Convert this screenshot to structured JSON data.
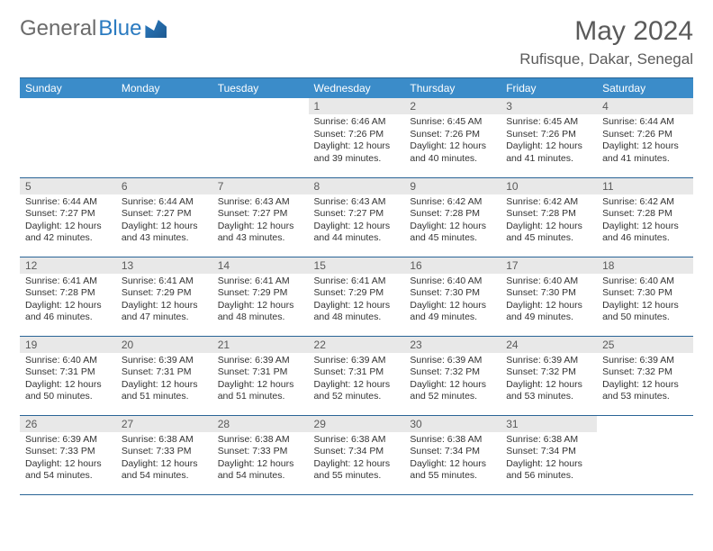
{
  "colors": {
    "header_bg": "#3b8cc9",
    "header_text": "#ffffff",
    "daynum_bg": "#e8e8e8",
    "border": "#2a6496",
    "logo_gray": "#6b6b6b",
    "logo_blue": "#2a7ac0",
    "title_color": "#5a5a5a",
    "body_text": "#333333",
    "background": "#ffffff"
  },
  "logo": {
    "part1": "General",
    "part2": "Blue"
  },
  "title": "May 2024",
  "location": "Rufisque, Dakar, Senegal",
  "weekdays": [
    "Sunday",
    "Monday",
    "Tuesday",
    "Wednesday",
    "Thursday",
    "Friday",
    "Saturday"
  ],
  "weeks": [
    [
      null,
      null,
      null,
      {
        "d": "1",
        "sr": "Sunrise: 6:46 AM",
        "ss": "Sunset: 7:26 PM",
        "dl1": "Daylight: 12 hours",
        "dl2": "and 39 minutes."
      },
      {
        "d": "2",
        "sr": "Sunrise: 6:45 AM",
        "ss": "Sunset: 7:26 PM",
        "dl1": "Daylight: 12 hours",
        "dl2": "and 40 minutes."
      },
      {
        "d": "3",
        "sr": "Sunrise: 6:45 AM",
        "ss": "Sunset: 7:26 PM",
        "dl1": "Daylight: 12 hours",
        "dl2": "and 41 minutes."
      },
      {
        "d": "4",
        "sr": "Sunrise: 6:44 AM",
        "ss": "Sunset: 7:26 PM",
        "dl1": "Daylight: 12 hours",
        "dl2": "and 41 minutes."
      }
    ],
    [
      {
        "d": "5",
        "sr": "Sunrise: 6:44 AM",
        "ss": "Sunset: 7:27 PM",
        "dl1": "Daylight: 12 hours",
        "dl2": "and 42 minutes."
      },
      {
        "d": "6",
        "sr": "Sunrise: 6:44 AM",
        "ss": "Sunset: 7:27 PM",
        "dl1": "Daylight: 12 hours",
        "dl2": "and 43 minutes."
      },
      {
        "d": "7",
        "sr": "Sunrise: 6:43 AM",
        "ss": "Sunset: 7:27 PM",
        "dl1": "Daylight: 12 hours",
        "dl2": "and 43 minutes."
      },
      {
        "d": "8",
        "sr": "Sunrise: 6:43 AM",
        "ss": "Sunset: 7:27 PM",
        "dl1": "Daylight: 12 hours",
        "dl2": "and 44 minutes."
      },
      {
        "d": "9",
        "sr": "Sunrise: 6:42 AM",
        "ss": "Sunset: 7:28 PM",
        "dl1": "Daylight: 12 hours",
        "dl2": "and 45 minutes."
      },
      {
        "d": "10",
        "sr": "Sunrise: 6:42 AM",
        "ss": "Sunset: 7:28 PM",
        "dl1": "Daylight: 12 hours",
        "dl2": "and 45 minutes."
      },
      {
        "d": "11",
        "sr": "Sunrise: 6:42 AM",
        "ss": "Sunset: 7:28 PM",
        "dl1": "Daylight: 12 hours",
        "dl2": "and 46 minutes."
      }
    ],
    [
      {
        "d": "12",
        "sr": "Sunrise: 6:41 AM",
        "ss": "Sunset: 7:28 PM",
        "dl1": "Daylight: 12 hours",
        "dl2": "and 46 minutes."
      },
      {
        "d": "13",
        "sr": "Sunrise: 6:41 AM",
        "ss": "Sunset: 7:29 PM",
        "dl1": "Daylight: 12 hours",
        "dl2": "and 47 minutes."
      },
      {
        "d": "14",
        "sr": "Sunrise: 6:41 AM",
        "ss": "Sunset: 7:29 PM",
        "dl1": "Daylight: 12 hours",
        "dl2": "and 48 minutes."
      },
      {
        "d": "15",
        "sr": "Sunrise: 6:41 AM",
        "ss": "Sunset: 7:29 PM",
        "dl1": "Daylight: 12 hours",
        "dl2": "and 48 minutes."
      },
      {
        "d": "16",
        "sr": "Sunrise: 6:40 AM",
        "ss": "Sunset: 7:30 PM",
        "dl1": "Daylight: 12 hours",
        "dl2": "and 49 minutes."
      },
      {
        "d": "17",
        "sr": "Sunrise: 6:40 AM",
        "ss": "Sunset: 7:30 PM",
        "dl1": "Daylight: 12 hours",
        "dl2": "and 49 minutes."
      },
      {
        "d": "18",
        "sr": "Sunrise: 6:40 AM",
        "ss": "Sunset: 7:30 PM",
        "dl1": "Daylight: 12 hours",
        "dl2": "and 50 minutes."
      }
    ],
    [
      {
        "d": "19",
        "sr": "Sunrise: 6:40 AM",
        "ss": "Sunset: 7:31 PM",
        "dl1": "Daylight: 12 hours",
        "dl2": "and 50 minutes."
      },
      {
        "d": "20",
        "sr": "Sunrise: 6:39 AM",
        "ss": "Sunset: 7:31 PM",
        "dl1": "Daylight: 12 hours",
        "dl2": "and 51 minutes."
      },
      {
        "d": "21",
        "sr": "Sunrise: 6:39 AM",
        "ss": "Sunset: 7:31 PM",
        "dl1": "Daylight: 12 hours",
        "dl2": "and 51 minutes."
      },
      {
        "d": "22",
        "sr": "Sunrise: 6:39 AM",
        "ss": "Sunset: 7:31 PM",
        "dl1": "Daylight: 12 hours",
        "dl2": "and 52 minutes."
      },
      {
        "d": "23",
        "sr": "Sunrise: 6:39 AM",
        "ss": "Sunset: 7:32 PM",
        "dl1": "Daylight: 12 hours",
        "dl2": "and 52 minutes."
      },
      {
        "d": "24",
        "sr": "Sunrise: 6:39 AM",
        "ss": "Sunset: 7:32 PM",
        "dl1": "Daylight: 12 hours",
        "dl2": "and 53 minutes."
      },
      {
        "d": "25",
        "sr": "Sunrise: 6:39 AM",
        "ss": "Sunset: 7:32 PM",
        "dl1": "Daylight: 12 hours",
        "dl2": "and 53 minutes."
      }
    ],
    [
      {
        "d": "26",
        "sr": "Sunrise: 6:39 AM",
        "ss": "Sunset: 7:33 PM",
        "dl1": "Daylight: 12 hours",
        "dl2": "and 54 minutes."
      },
      {
        "d": "27",
        "sr": "Sunrise: 6:38 AM",
        "ss": "Sunset: 7:33 PM",
        "dl1": "Daylight: 12 hours",
        "dl2": "and 54 minutes."
      },
      {
        "d": "28",
        "sr": "Sunrise: 6:38 AM",
        "ss": "Sunset: 7:33 PM",
        "dl1": "Daylight: 12 hours",
        "dl2": "and 54 minutes."
      },
      {
        "d": "29",
        "sr": "Sunrise: 6:38 AM",
        "ss": "Sunset: 7:34 PM",
        "dl1": "Daylight: 12 hours",
        "dl2": "and 55 minutes."
      },
      {
        "d": "30",
        "sr": "Sunrise: 6:38 AM",
        "ss": "Sunset: 7:34 PM",
        "dl1": "Daylight: 12 hours",
        "dl2": "and 55 minutes."
      },
      {
        "d": "31",
        "sr": "Sunrise: 6:38 AM",
        "ss": "Sunset: 7:34 PM",
        "dl1": "Daylight: 12 hours",
        "dl2": "and 56 minutes."
      },
      null
    ]
  ]
}
